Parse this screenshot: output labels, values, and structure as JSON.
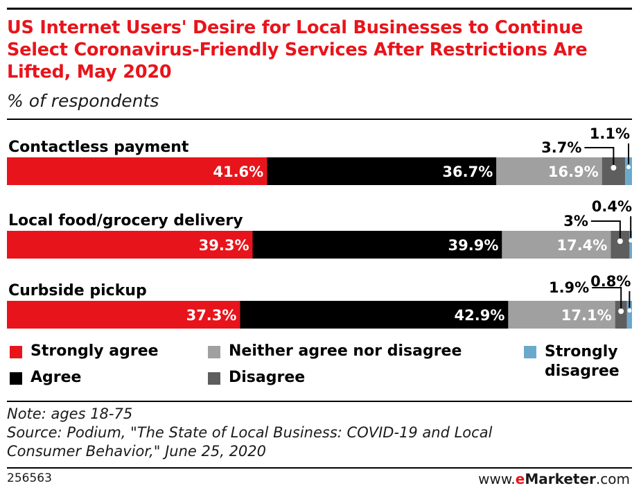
{
  "chart_data": {
    "type": "bar",
    "orientation": "horizontal",
    "stacked": true,
    "title": "US Internet Users' Desire for Local Businesses to Continue Select Coronavirus-Friendly Services After Restrictions Are Lifted, May 2020",
    "subtitle": "% of respondents",
    "categories": [
      "Contactless payment",
      "Local food/grocery delivery",
      "Curbside pickup"
    ],
    "series": [
      {
        "name": "Strongly agree",
        "color": "#e8141b",
        "values": [
          41.6,
          39.3,
          37.3
        ]
      },
      {
        "name": "Agree",
        "color": "#000000",
        "values": [
          36.7,
          39.9,
          42.9
        ]
      },
      {
        "name": "Neither agree nor disagree",
        "color": "#a0a0a0",
        "values": [
          16.9,
          17.4,
          17.1
        ]
      },
      {
        "name": "Disagree",
        "color": "#5e5e5e",
        "values": [
          3.7,
          3.0,
          1.9
        ]
      },
      {
        "name": "Strongly disagree",
        "color": "#6aa9cc",
        "values": [
          1.1,
          0.4,
          0.8
        ]
      }
    ],
    "value_suffix": "%",
    "legend_position": "bottom"
  },
  "legend": {
    "items": [
      {
        "label": "Strongly agree",
        "color": "#e8141b"
      },
      {
        "label": "Agree",
        "color": "#000000"
      },
      {
        "label": "Neither agree nor disagree",
        "color": "#a0a0a0"
      },
      {
        "label": "Disagree",
        "color": "#5e5e5e"
      },
      {
        "label": "Strongly disagree",
        "color": "#6aa9cc"
      }
    ]
  },
  "footer": {
    "note": "Note: ages 18-75",
    "source_line1": "Source: Podium, \"The State of Local Business: COVID-19 and Local",
    "source_line2": "Consumer Behavior,\" June 25, 2020",
    "chart_id": "256563",
    "brand_prefix": "www.",
    "brand_e": "e",
    "brand_name": "Marketer",
    "brand_suffix": ".com"
  }
}
